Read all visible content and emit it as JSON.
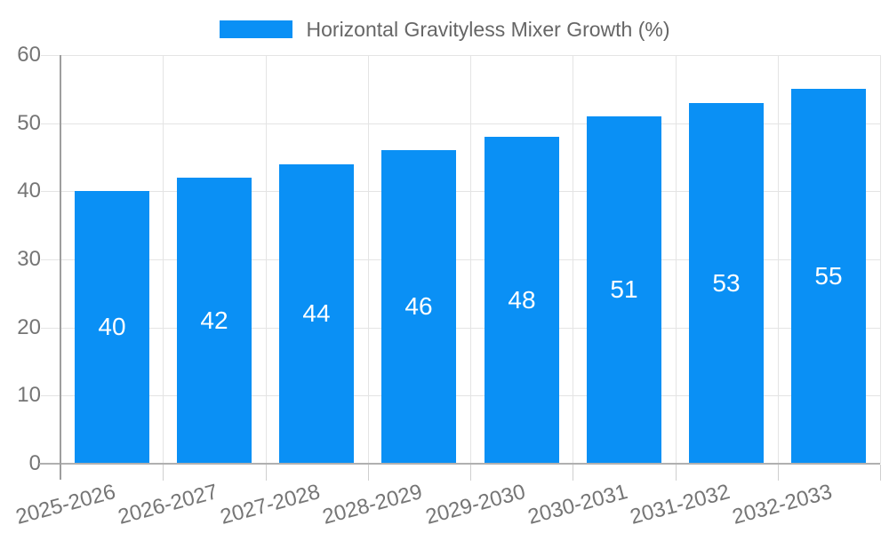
{
  "chart_data": {
    "type": "bar",
    "title": "Horizontal Gravityless Mixer Growth (%)",
    "categories": [
      "2025-2026",
      "2026-2027",
      "2027-2028",
      "2028-2029",
      "2029-2030",
      "2030-2031",
      "2031-2032",
      "2032-2033"
    ],
    "values": [
      40,
      42,
      44,
      46,
      48,
      51,
      53,
      55
    ],
    "xlabel": "",
    "ylabel": "",
    "ylim": [
      0,
      60
    ],
    "yticks": [
      0,
      10,
      20,
      30,
      40,
      50,
      60
    ],
    "grid": true,
    "legend_position": "top",
    "bar_labels_inside": true,
    "colors": {
      "bar": "#0a90f5",
      "bar_label": "#ffffff",
      "axis_text": "#757575",
      "legend_text": "#666666",
      "gridline": "#e4e4e4",
      "axis_line": "#9e9e9e",
      "baseline": "#b0b0b0",
      "background": "#ffffff"
    }
  }
}
